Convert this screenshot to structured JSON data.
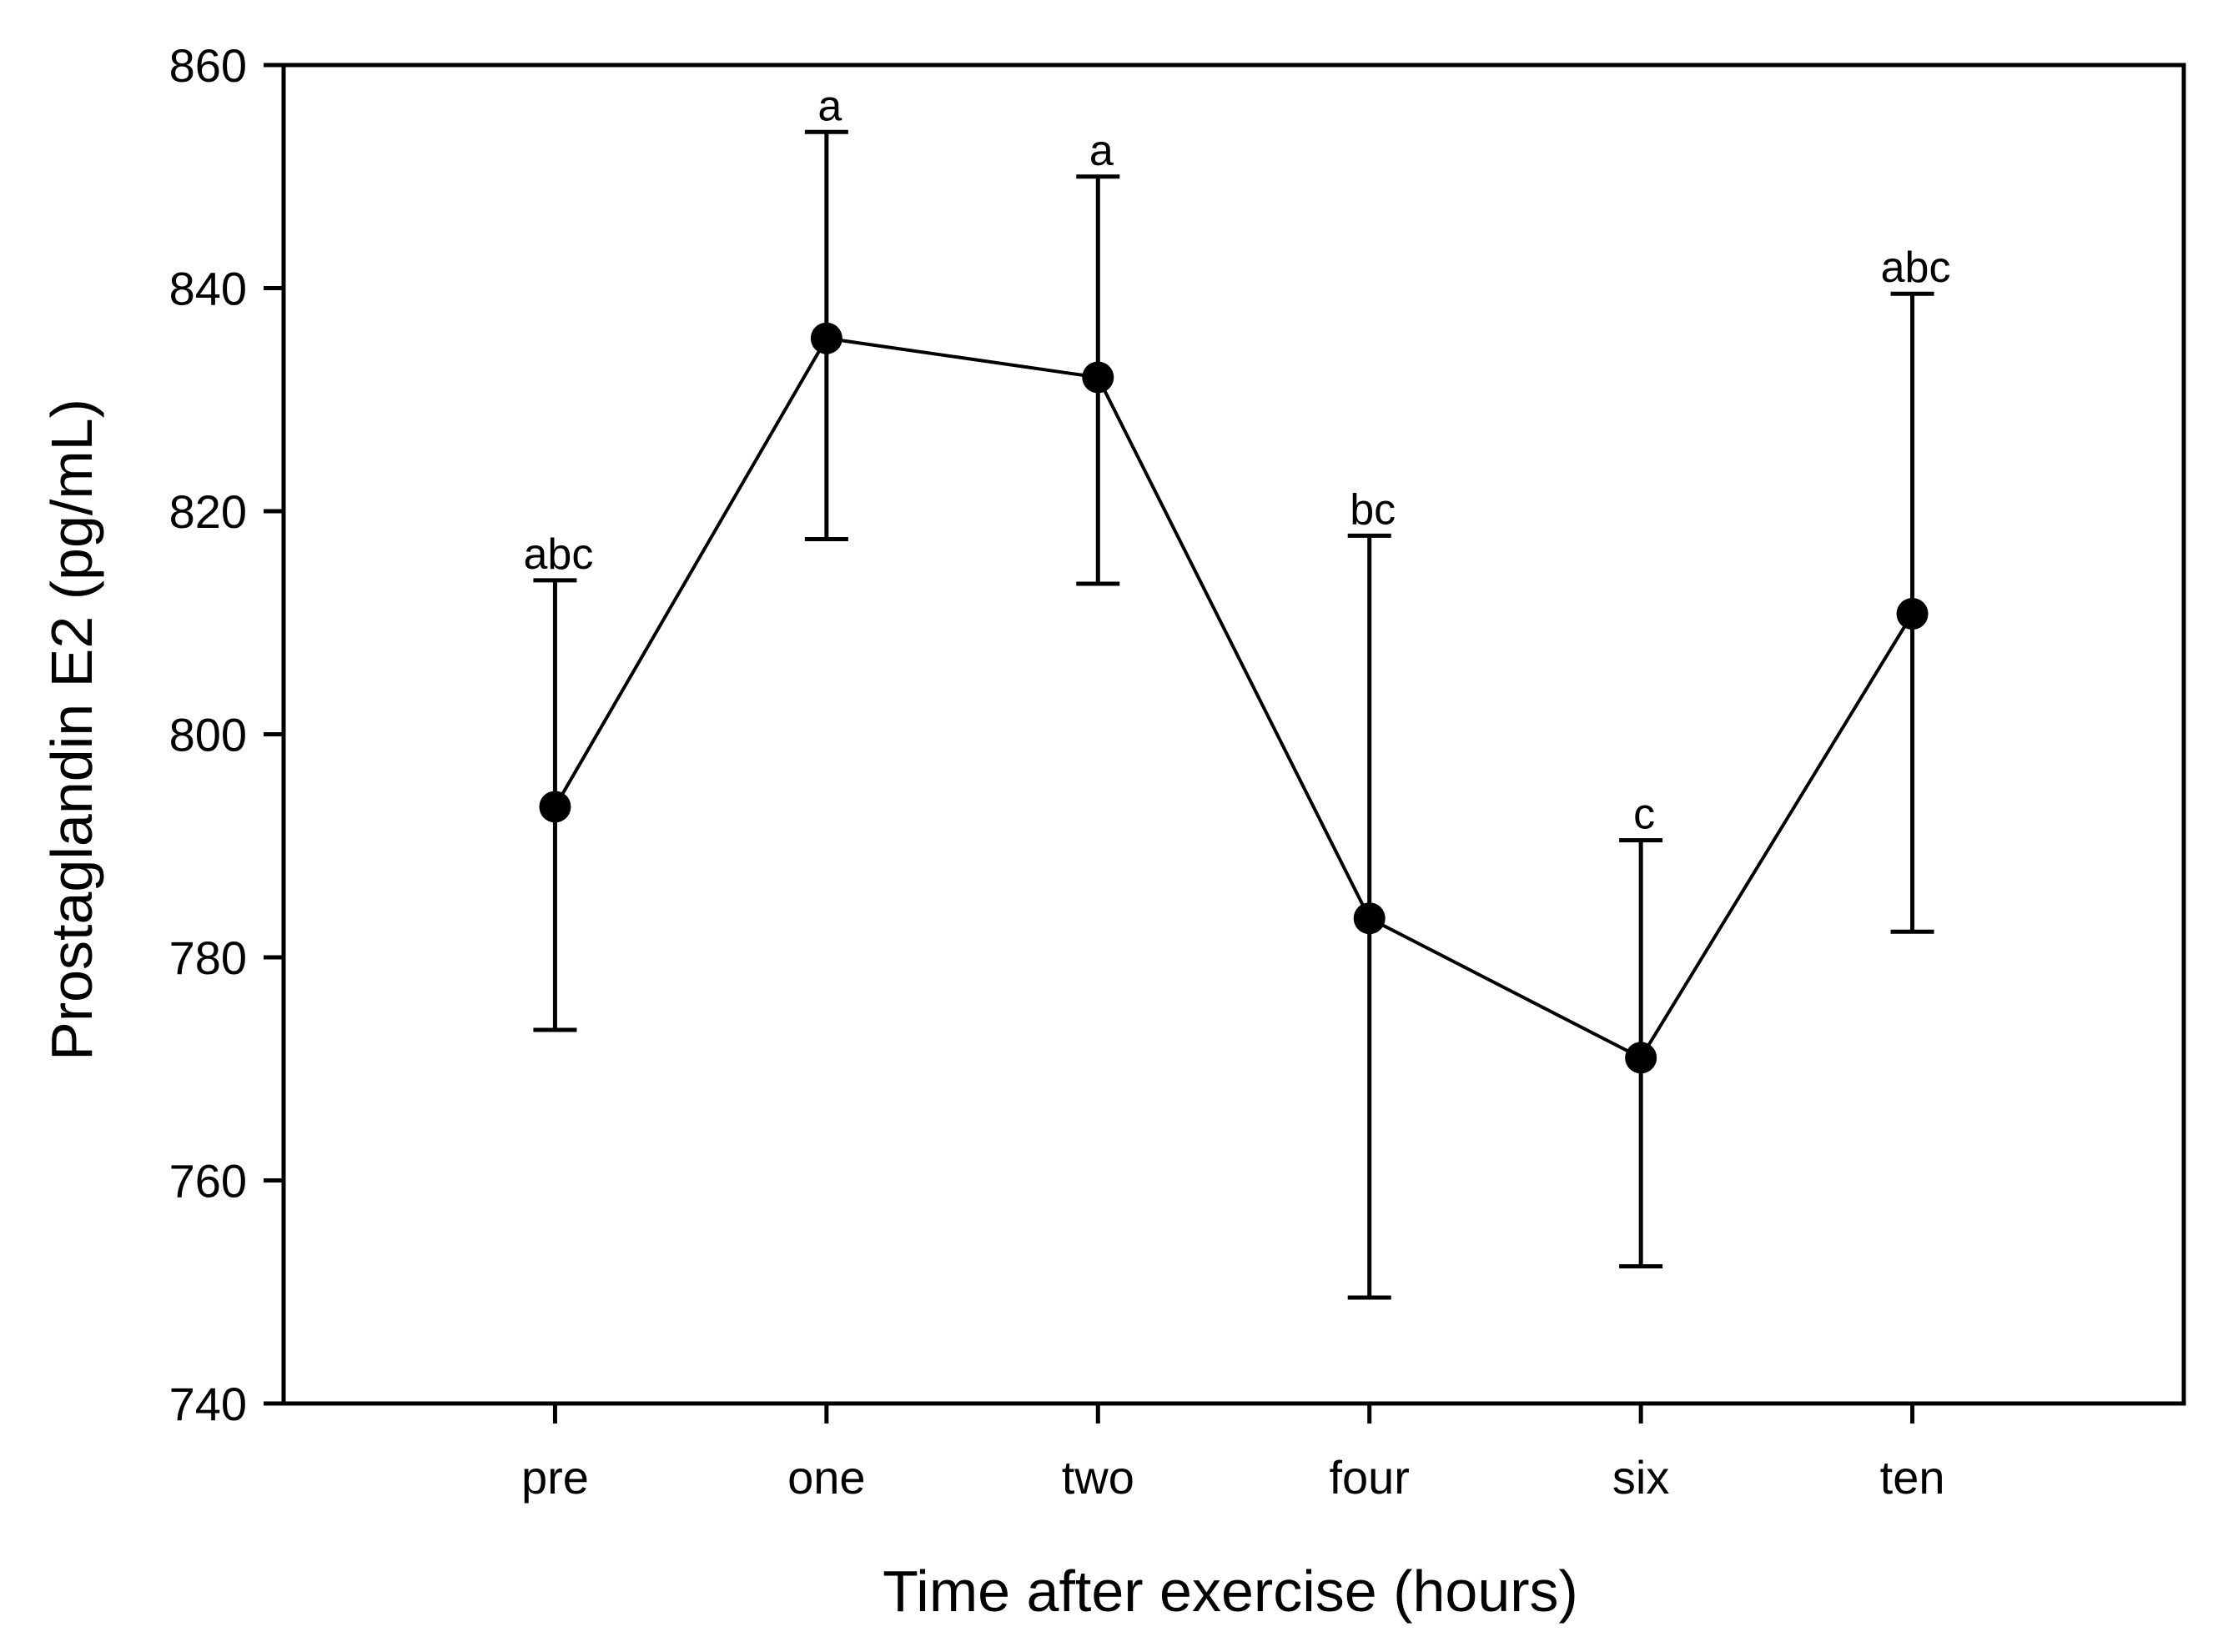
{
  "chart_data": {
    "type": "line",
    "title": "",
    "xlabel": "Time after exercise (hours)",
    "ylabel": "Prostaglandin E2 (pg/mL)",
    "categories": [
      "pre",
      "one",
      "two",
      "four",
      "six",
      "ten"
    ],
    "ylim": [
      740,
      860
    ],
    "yticks": [
      740,
      760,
      780,
      800,
      820,
      840,
      860
    ],
    "ytick_labels": [
      "740",
      "760",
      "780",
      "800",
      "820",
      "840",
      "860"
    ],
    "grid": false,
    "legend": "none",
    "series": [
      {
        "name": "Prostaglandin E2",
        "values": [
          793.5,
          835.5,
          832.0,
          783.5,
          771.0,
          810.8
        ],
        "error_upper": [
          813.8,
          854.0,
          850.0,
          817.8,
          790.5,
          839.5
        ],
        "error_lower": [
          773.5,
          817.5,
          813.5,
          749.5,
          752.3,
          782.3
        ],
        "significance_labels": [
          "abc",
          "a",
          "a",
          "bc",
          "c",
          "abc"
        ]
      }
    ],
    "colors": {
      "line": "#000000",
      "marker": "#000000",
      "axis": "#000000"
    }
  }
}
